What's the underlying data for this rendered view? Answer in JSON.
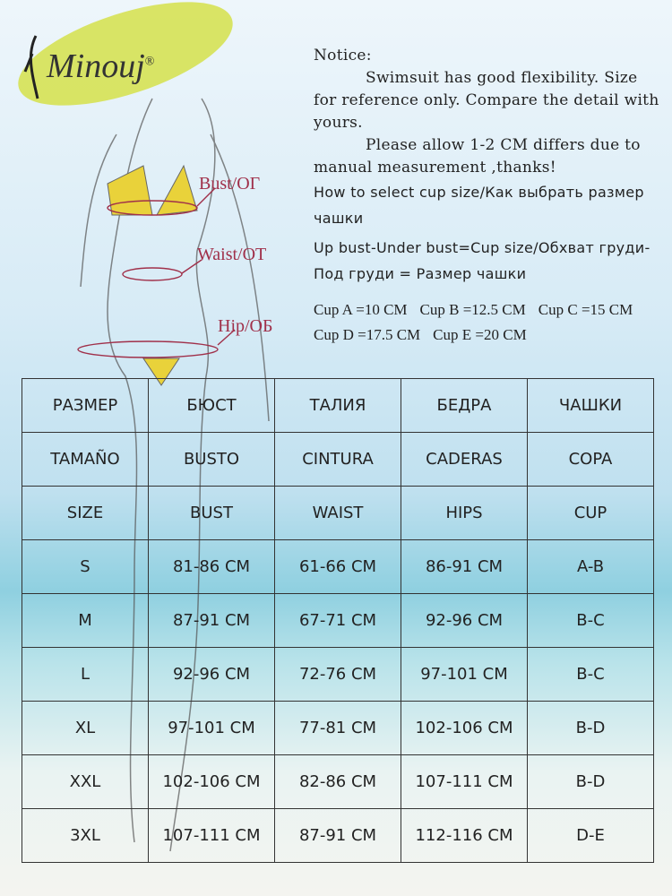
{
  "logo": {
    "brand": "Minouj",
    "mark": "®"
  },
  "notice": {
    "title": "Notice:",
    "paragraphs": [
      "Swimsuit has good flexibility. Size for reference only. Compare the detail with yours.",
      "Please allow 1-2 CM differs due to manual measurement ,thanks!"
    ],
    "how_to": "How to select cup size/Как выбрать размер чашки",
    "formula": "Up bust-Under bust=Cup size/Обхват груди-Под груди = Размер чашки",
    "cups": [
      "Cup A =10 CM",
      "Cup B =12.5 CM",
      "Cup C =15 CM",
      "Cup D =17.5 CM",
      "Cup E =20 CM"
    ]
  },
  "figure_labels": [
    "Bust/ОГ",
    "Waist/ОТ",
    "Hip/ОБ"
  ],
  "table": {
    "rows": [
      [
        "РАЗМЕР",
        "БЮСТ",
        "ТАЛИЯ",
        "БЕДРА",
        "ЧАШКИ"
      ],
      [
        "TAMAÑO",
        "BUSTO",
        "CINTURA",
        "CADERAS",
        "COPA"
      ],
      [
        "SIZE",
        "BUST",
        "WAIST",
        "HIPS",
        "CUP"
      ],
      [
        "S",
        "81-86 CM",
        "61-66 CM",
        "86-91 CM",
        "A-B"
      ],
      [
        "M",
        "87-91 CM",
        "67-71 CM",
        "92-96 CM",
        "B-C"
      ],
      [
        "L",
        "92-96 CM",
        "72-76 CM",
        "97-101 CM",
        "B-C"
      ],
      [
        "XL",
        "97-101 CM",
        "77-81 CM",
        "102-106 CM",
        "B-D"
      ],
      [
        "XXL",
        "102-106 CM",
        "82-86 CM",
        "107-111 CM",
        "B-D"
      ],
      [
        "3XL",
        "107-111 CM",
        "87-91 CM",
        "112-116 CM",
        "D-E"
      ]
    ]
  }
}
